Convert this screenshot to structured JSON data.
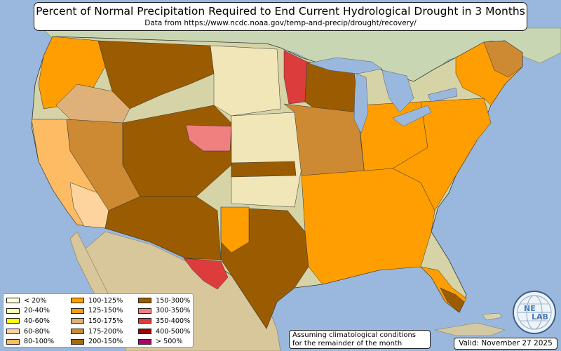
{
  "title": "Percent of Normal Precipitation Required to End Current Hydrological Drought in 3 Months",
  "subtitle": "Data from https://www.ncdc.noaa.gov/temp-and-precip/drought/recovery/",
  "legend": [
    {
      "label": "< 20%",
      "color": "#fefee0"
    },
    {
      "label": "20-40%",
      "color": "#ffffb0"
    },
    {
      "label": "40-60%",
      "color": "#ffff00"
    },
    {
      "label": "60-80%",
      "color": "#fdd49e"
    },
    {
      "label": "80-100%",
      "color": "#fdbb64"
    },
    {
      "label": "100-125%",
      "color": "#ff9e00"
    },
    {
      "label": "125-150%",
      "color": "#f59b16"
    },
    {
      "label": "150-175%",
      "color": "#deb07a"
    },
    {
      "label": "175-200%",
      "color": "#cd8a33"
    },
    {
      "label": "200-150%",
      "color": "#a86a0a"
    },
    {
      "label": "150-300%",
      "color": "#9b5b00"
    },
    {
      "label": "300-350%",
      "color": "#f08080"
    },
    {
      "label": "350-400%",
      "color": "#dc3c3c"
    },
    {
      "label": "400-500%",
      "color": "#a00000"
    },
    {
      "label": "> 500%",
      "color": "#b0006a"
    }
  ],
  "note_line1": "Assuming climatological conditions",
  "note_line2": "for the remainder of the month",
  "valid": "Valid: November 27 2025",
  "logo": {
    "top": "NE",
    "bottom": "LAB",
    "icon": "nevada-lab-globe-logo"
  },
  "colors": {
    "water": "#9ab8dd",
    "land_green": "#c8d8b0",
    "land_tan": "#d8c89a",
    "canada": "#c9d6b6",
    "mexico": "#d9c79c"
  }
}
